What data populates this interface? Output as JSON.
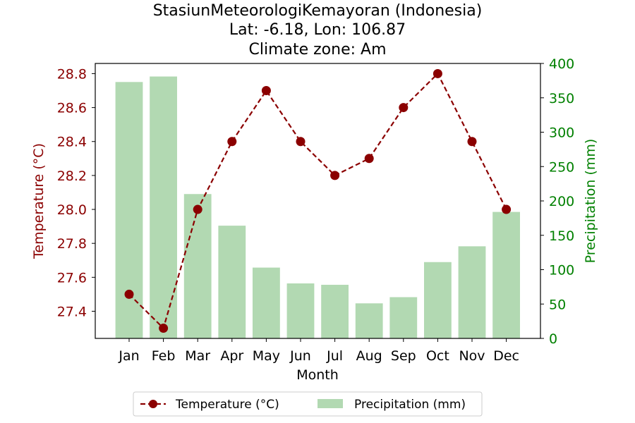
{
  "chart_data": {
    "type": "bar+line",
    "title": [
      "StasiunMeteorologiKemayoran (Indonesia)",
      "Lat: -6.18, Lon: 106.87",
      "Climate zone: Am"
    ],
    "xlabel": "Month",
    "categories": [
      "Jan",
      "Feb",
      "Mar",
      "Apr",
      "May",
      "Jun",
      "Jul",
      "Aug",
      "Sep",
      "Oct",
      "Nov",
      "Dec"
    ],
    "series": [
      {
        "name": "Temperature (°C)",
        "type": "line",
        "axis": "left",
        "values": [
          27.5,
          27.3,
          28.0,
          28.4,
          28.7,
          28.4,
          28.2,
          28.3,
          28.6,
          28.8,
          28.4,
          28.0
        ]
      },
      {
        "name": "Precipitation (mm)",
        "type": "bar",
        "axis": "right",
        "values": [
          373,
          381,
          210,
          164,
          103,
          80,
          78,
          51,
          60,
          111,
          134,
          184
        ]
      }
    ],
    "y_left": {
      "label": "Temperature (°C)",
      "ylim": [
        27.24,
        28.86
      ],
      "ticks": [
        27.4,
        27.6,
        27.8,
        28.0,
        28.2,
        28.4,
        28.6,
        28.8
      ],
      "tick_labels": [
        "27.4",
        "27.6",
        "27.8",
        "28.0",
        "28.2",
        "28.4",
        "28.6",
        "28.8"
      ]
    },
    "y_right": {
      "label": "Precipitation (mm)",
      "ylim": [
        0,
        400
      ],
      "ticks": [
        0,
        50,
        100,
        150,
        200,
        250,
        300,
        350,
        400
      ],
      "tick_labels": [
        "0",
        "50",
        "100",
        "150",
        "200",
        "250",
        "300",
        "350",
        "400"
      ]
    },
    "grid": false,
    "legend_position": "bottom-center",
    "colors": {
      "temperature": "#8b0000",
      "precipitation_bar": "#b2d9b2",
      "right_axis": "#008000",
      "axis": "#000000"
    }
  }
}
